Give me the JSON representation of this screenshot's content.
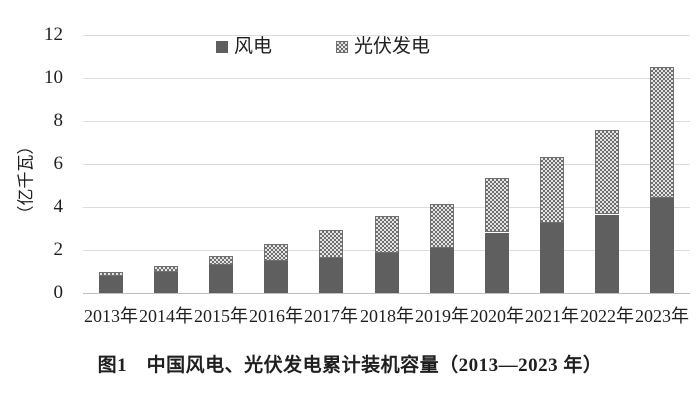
{
  "figure": {
    "caption": "图1　中国风电、光伏发电累计装机容量（2013—2023 年）"
  },
  "legend": {
    "items": [
      {
        "label": "风电",
        "swatch": "solid"
      },
      {
        "label": "光伏发电",
        "swatch": "checker-pattern"
      }
    ]
  },
  "colors": {
    "wind_bar": "#5f5f5f",
    "solar_pattern_fg": "#6f6f6f",
    "solar_pattern_bg": "#e4e4e4",
    "gridline": "#dcdcdc",
    "axis_line": "#bfbfbf",
    "text": "#1f1f1f"
  },
  "chart_data": {
    "type": "bar",
    "stacked": true,
    "title": "图1 中国风电、光伏发电累计装机容量（2013—2023 年）",
    "categories": [
      "2013年",
      "2014年",
      "2015年",
      "2016年",
      "2017年",
      "2018年",
      "2019年",
      "2020年",
      "2021年",
      "2022年",
      "2023年"
    ],
    "series": [
      {
        "name": "风电",
        "values": [
          0.77,
          0.96,
          1.29,
          1.49,
          1.64,
          1.84,
          2.1,
          2.81,
          3.28,
          3.65,
          4.41
        ]
      },
      {
        "name": "光伏发电",
        "values": [
          0.19,
          0.28,
          0.43,
          0.77,
          1.3,
          1.74,
          2.04,
          2.53,
          3.06,
          3.93,
          6.09
        ]
      }
    ],
    "xlabel": "",
    "ylabel": "（亿千瓦）",
    "ylim": [
      0,
      12
    ],
    "yticks": [
      0,
      2,
      4,
      6,
      8,
      10,
      12
    ],
    "grid": true,
    "legend_position": "top-center"
  }
}
